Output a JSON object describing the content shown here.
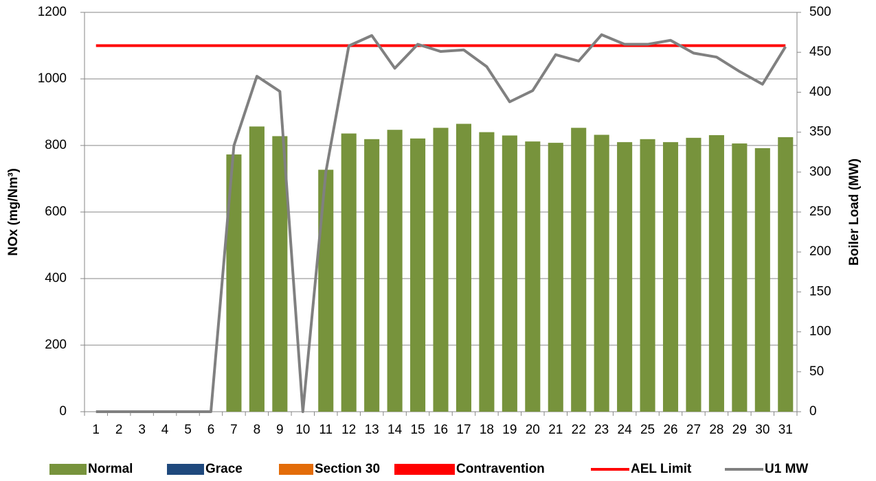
{
  "chart_data": {
    "type": "bar",
    "y_label": "NOx (mg/Nm³)",
    "y2_label": "Boiler Load (MW)",
    "categories": [
      "1",
      "2",
      "3",
      "4",
      "5",
      "6",
      "7",
      "8",
      "9",
      "10",
      "11",
      "12",
      "13",
      "14",
      "15",
      "16",
      "17",
      "18",
      "19",
      "20",
      "21",
      "22",
      "23",
      "24",
      "25",
      "26",
      "27",
      "28",
      "29",
      "30",
      "31"
    ],
    "series": [
      {
        "name": "Normal",
        "type": "bar",
        "color": "#77933c",
        "values": [
          null,
          null,
          null,
          null,
          null,
          null,
          773,
          857,
          828,
          null,
          727,
          836,
          819,
          847,
          821,
          853,
          865,
          840,
          830,
          812,
          808,
          853,
          832,
          810,
          819,
          810,
          823,
          831,
          806,
          792,
          825
        ]
      },
      {
        "name": "Grace",
        "type": "bar",
        "color": "#1f497d",
        "values": [
          null,
          null,
          null,
          null,
          null,
          null,
          null,
          null,
          null,
          null,
          null,
          null,
          null,
          null,
          null,
          null,
          null,
          null,
          null,
          null,
          null,
          null,
          null,
          null,
          null,
          null,
          null,
          null,
          null,
          null,
          null
        ]
      },
      {
        "name": "Section 30",
        "type": "bar",
        "color": "#e36c09",
        "values": [
          null,
          null,
          null,
          null,
          null,
          null,
          null,
          null,
          null,
          null,
          null,
          null,
          null,
          null,
          null,
          null,
          null,
          null,
          null,
          null,
          null,
          null,
          null,
          null,
          null,
          null,
          null,
          null,
          null,
          null,
          null
        ]
      },
      {
        "name": "Contravention",
        "type": "bar",
        "color": "#ff0000",
        "values": [
          null,
          null,
          null,
          null,
          null,
          null,
          null,
          null,
          null,
          null,
          null,
          null,
          null,
          null,
          null,
          null,
          null,
          null,
          null,
          null,
          null,
          null,
          null,
          null,
          null,
          null,
          null,
          null,
          null,
          null,
          null
        ]
      },
      {
        "name": "AEL Limit",
        "type": "line",
        "color": "#ff0000",
        "values": [
          1100,
          1100,
          1100,
          1100,
          1100,
          1100,
          1100,
          1100,
          1100,
          1100,
          1100,
          1100,
          1100,
          1100,
          1100,
          1100,
          1100,
          1100,
          1100,
          1100,
          1100,
          1100,
          1100,
          1100,
          1100,
          1100,
          1100,
          1100,
          1100,
          1100,
          1100
        ]
      },
      {
        "name": "U1 MW",
        "type": "line",
        "axis": "y2",
        "color": "#808080",
        "values": [
          0,
          0,
          0,
          0,
          0,
          0,
          333,
          420,
          401,
          0,
          300,
          458,
          471,
          430,
          460,
          451,
          453,
          432,
          388,
          402,
          447,
          439,
          472,
          460,
          460,
          465,
          449,
          444,
          426,
          410,
          457
        ]
      }
    ],
    "ylim": [
      0,
      1200
    ],
    "yticks": [
      0,
      200,
      400,
      600,
      800,
      1000,
      1200
    ],
    "y2lim": [
      0,
      500
    ],
    "y2ticks": [
      0,
      50,
      100,
      150,
      200,
      250,
      300,
      350,
      400,
      450,
      500
    ],
    "grid": true,
    "legend": "bottom"
  }
}
